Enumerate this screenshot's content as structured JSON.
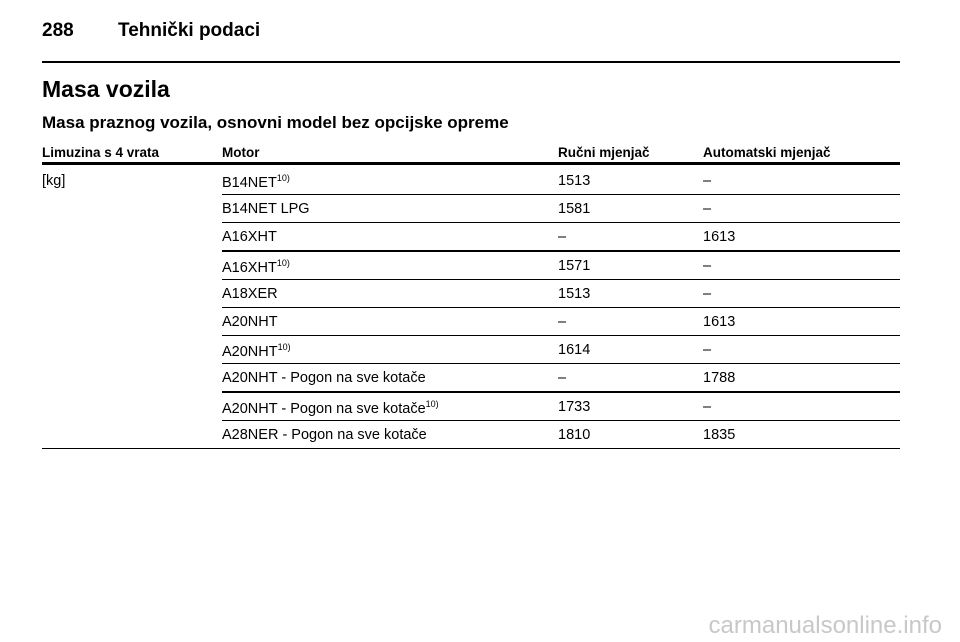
{
  "header": {
    "page_number": "288",
    "section": "Tehnički podaci"
  },
  "title": "Masa vozila",
  "subtitle": "Masa praznog vozila, osnovni model bez opcijske opreme",
  "table": {
    "columns": [
      "Limuzina s 4 vrata",
      "Motor",
      "Ručni mjenjač",
      "Automatski mjenjač"
    ],
    "unit": "[kg]",
    "rows": [
      {
        "motor": "B14NET",
        "note": "10)",
        "manual": "1513",
        "automatic": "–"
      },
      {
        "motor": "B14NET LPG",
        "manual": "1581",
        "automatic": "–"
      },
      {
        "motor": "A16XHT",
        "manual": "–",
        "automatic": "1613"
      },
      {
        "motor": "A16XHT",
        "note": "10)",
        "manual": "1571",
        "automatic": "–"
      },
      {
        "motor": "A18XER",
        "manual": "1513",
        "automatic": "–"
      },
      {
        "motor": "A20NHT",
        "manual": "–",
        "automatic": "1613"
      },
      {
        "motor": "A20NHT",
        "note": "10)",
        "manual": "1614",
        "automatic": "–"
      },
      {
        "motor": "A20NHT - Pogon na sve kotače",
        "manual": "–",
        "automatic": "1788"
      },
      {
        "motor": "A20NHT - Pogon na sve kotače",
        "note": "10)",
        "manual": "1733",
        "automatic": "–"
      },
      {
        "motor": "A28NER - Pogon na sve kotače",
        "manual": "1810",
        "automatic": "1835"
      }
    ]
  },
  "watermark": "carmanualsonline.info"
}
